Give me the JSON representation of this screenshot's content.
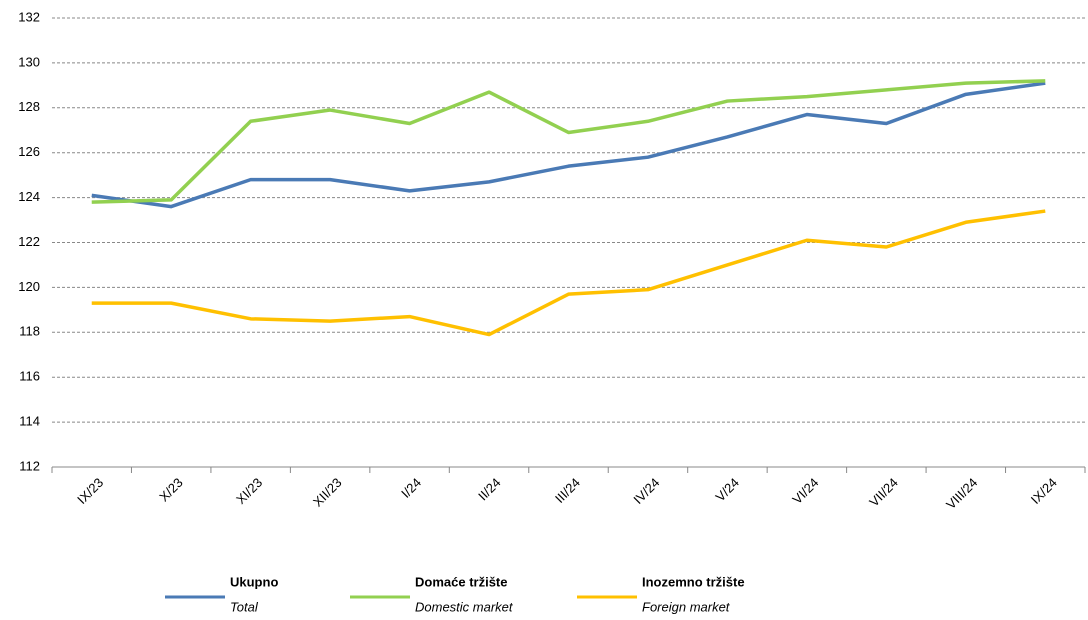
{
  "chart_data": {
    "type": "line",
    "categories": [
      "IX/23",
      "X/23",
      "XI/23",
      "XII/23",
      "I/24",
      "II/24",
      "III/24",
      "IV/24",
      "V/24",
      "VI/24",
      "VII/24",
      "VIII/24",
      "IX/24"
    ],
    "series": [
      {
        "name": "Ukupno",
        "name_en": "Total",
        "color": "#4a7ab5",
        "values": [
          124.1,
          123.6,
          124.8,
          124.8,
          124.3,
          124.7,
          125.4,
          125.8,
          126.7,
          127.7,
          127.3,
          128.6,
          129.1
        ]
      },
      {
        "name": "Domaće tržište",
        "name_en": "Domestic market",
        "color": "#92d050",
        "values": [
          123.8,
          123.9,
          127.4,
          127.9,
          127.3,
          128.7,
          126.9,
          127.4,
          128.3,
          128.5,
          128.8,
          129.1,
          129.2
        ]
      },
      {
        "name": "Inozemno tržište",
        "name_en": "Foreign market",
        "color": "#ffc000",
        "values": [
          119.3,
          119.3,
          118.6,
          118.5,
          118.7,
          117.9,
          119.7,
          119.9,
          121.0,
          122.1,
          121.8,
          122.9,
          123.4
        ]
      }
    ],
    "ylim": [
      112,
      132
    ],
    "yticks": [
      112,
      114,
      116,
      118,
      120,
      122,
      124,
      126,
      128,
      130,
      132
    ],
    "grid": true,
    "legend": "bottom"
  }
}
